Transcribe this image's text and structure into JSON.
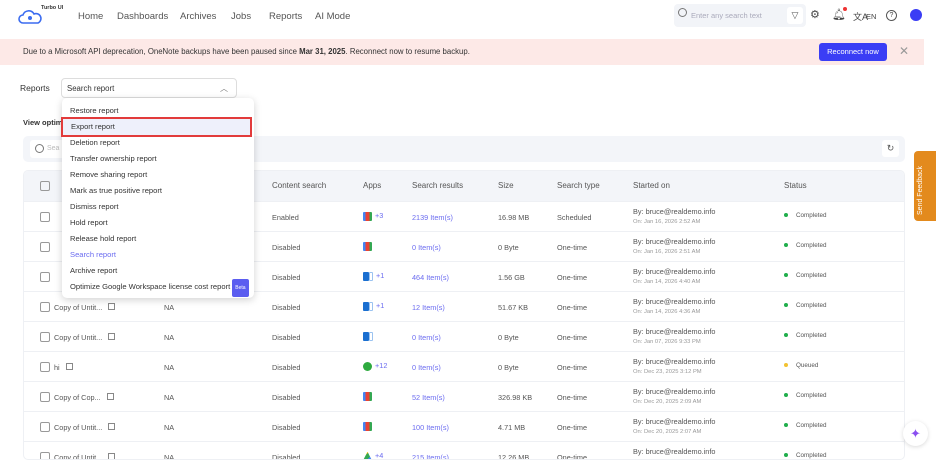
{
  "header": {
    "logo": "Turbo UI",
    "nav": [
      "Home",
      "Dashboards",
      "Archives",
      "Jobs",
      "Reports",
      "AI Mode"
    ],
    "search_placeholder": "Enter any search text",
    "lang": "EN"
  },
  "banner": {
    "text_before": "Due to a Microsoft API deprecation, OneNote backups have been paused since ",
    "date": "Mar 31, 2025",
    "text_after": ". Reconnect now to resume backup.",
    "button": "Reconnect now"
  },
  "reports": {
    "label": "Reports",
    "selected": "Search report",
    "view_link": "View optimi",
    "search_placeholder": "Sea"
  },
  "menu": [
    {
      "label": "Restore report"
    },
    {
      "label": "Export report",
      "highlighted": true
    },
    {
      "label": "Deletion report"
    },
    {
      "label": "Transfer ownership report"
    },
    {
      "label": "Remove sharing report"
    },
    {
      "label": "Mark as true positive report"
    },
    {
      "label": "Dismiss report"
    },
    {
      "label": "Hold report"
    },
    {
      "label": "Release hold report"
    },
    {
      "label": "Search report",
      "active": true
    },
    {
      "label": "Archive report"
    },
    {
      "label": "Optimize Google Workspace license cost report",
      "badge": "Beta"
    }
  ],
  "table": {
    "headers": [
      "Content search",
      "Apps",
      "Search results",
      "Size",
      "Search type",
      "Started on",
      "Status"
    ],
    "rows": [
      {
        "name": "",
        "col2": "",
        "content": "Enabled",
        "app": "gmail",
        "extra": "+3",
        "results": "2139 Item(s)",
        "size": "16.98 MB",
        "type": "Scheduled",
        "by": "By: bruce@realdemo.info",
        "on": "On: Jan 16, 2026 2:52 AM",
        "status": "Completed"
      },
      {
        "name": "",
        "col2": "",
        "content": "Disabled",
        "app": "gmail",
        "extra": "",
        "results": "0 Item(s)",
        "size": "0 Byte",
        "type": "One-time",
        "by": "By: bruce@realdemo.info",
        "on": "On: Jan 16, 2026 2:51 AM",
        "status": "Completed"
      },
      {
        "name": "",
        "col2": "",
        "content": "Disabled",
        "app": "outlook",
        "extra": "+1",
        "results": "464 Item(s)",
        "size": "1.56 GB",
        "type": "One-time",
        "by": "By: bruce@realdemo.info",
        "on": "On: Jan 14, 2026 4:40 AM",
        "status": "Completed"
      },
      {
        "name": "Copy of Untit...",
        "col2": "NA",
        "content": "Disabled",
        "app": "outlook",
        "extra": "+1",
        "results": "12 Item(s)",
        "size": "51.67 KB",
        "type": "One-time",
        "by": "By: bruce@realdemo.info",
        "on": "On: Jan 14, 2026 4:36 AM",
        "status": "Completed"
      },
      {
        "name": "Copy of Untit...",
        "col2": "NA",
        "content": "Disabled",
        "app": "outlook",
        "extra": "",
        "results": "0 Item(s)",
        "size": "0 Byte",
        "type": "One-time",
        "by": "By: bruce@realdemo.info",
        "on": "On: Jan 07, 2026 9:33 PM",
        "status": "Completed"
      },
      {
        "name": "hi",
        "col2": "NA",
        "content": "Disabled",
        "app": "green",
        "extra": "+12",
        "results": "0 Item(s)",
        "size": "0 Byte",
        "type": "One-time",
        "by": "By: bruce@realdemo.info",
        "on": "On: Dec 23, 2025 3:12 PM",
        "status": "Queued"
      },
      {
        "name": "Copy of Cop...",
        "col2": "NA",
        "content": "Disabled",
        "app": "gmail",
        "extra": "",
        "results": "52 Item(s)",
        "size": "326.98 KB",
        "type": "One-time",
        "by": "By: bruce@realdemo.info",
        "on": "On: Dec 20, 2025 2:09 AM",
        "status": "Completed"
      },
      {
        "name": "Copy of Untit...",
        "col2": "NA",
        "content": "Disabled",
        "app": "gmail",
        "extra": "",
        "results": "100 Item(s)",
        "size": "4.71 MB",
        "type": "One-time",
        "by": "By: bruce@realdemo.info",
        "on": "On: Dec 20, 2025 2:07 AM",
        "status": "Completed"
      },
      {
        "name": "Copy of Untit...",
        "col2": "NA",
        "content": "Disabled",
        "app": "drive",
        "extra": "+4",
        "results": "215 Item(s)",
        "size": "12.26 MB",
        "type": "One-time",
        "by": "By: bruce@realdemo.info",
        "on": "On: Dec 18, 2025 1:14 AM",
        "status": "Completed"
      }
    ]
  },
  "status_colors": {
    "Completed": "#1fae4b",
    "Queued": "#f2c230"
  },
  "feedback": "Send Feedback",
  "colors": {
    "accent": "#3a3df5",
    "banner": "#fde9e7",
    "feedback": "#e38a1d"
  }
}
